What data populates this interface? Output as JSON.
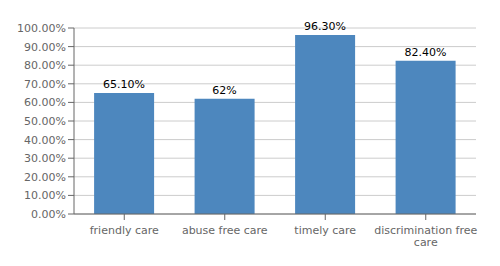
{
  "chart_data": {
    "type": "bar",
    "categories": [
      "friendly care",
      "abuse free care",
      "timely care",
      "discrimination free\ncare"
    ],
    "values": [
      65.1,
      62.0,
      96.3,
      82.4
    ],
    "value_labels": [
      "65.10%",
      "62%",
      "96.30%",
      "82.40%"
    ],
    "data_labels": true,
    "color": "#4D87BE",
    "ylim": [
      0,
      100
    ],
    "yticks": [
      {
        "value": 0,
        "label": "0.00%"
      },
      {
        "value": 10,
        "label": "10.00%"
      },
      {
        "value": 20,
        "label": "20.00%"
      },
      {
        "value": 30,
        "label": "30.00%"
      },
      {
        "value": 40,
        "label": "40.00%"
      },
      {
        "value": 50,
        "label": "50.00%"
      },
      {
        "value": 60,
        "label": "60.00%"
      },
      {
        "value": 70,
        "label": "70.00%"
      },
      {
        "value": 80,
        "label": "80.00%"
      },
      {
        "value": 90,
        "label": "90.00%"
      },
      {
        "value": 100,
        "label": "100.00%"
      }
    ],
    "grid": true
  }
}
